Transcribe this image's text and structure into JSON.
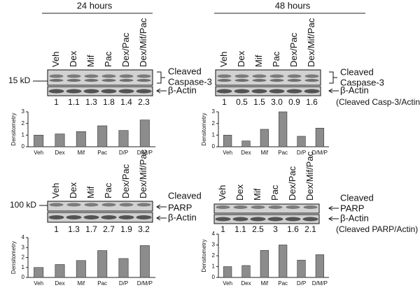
{
  "headers": [
    "24 hours",
    "48 hours"
  ],
  "panels": [
    {
      "lanes": [
        "Veh",
        "Dex",
        "Mif",
        "Pac",
        "Dex/Pac",
        "Dex/Mif/Pac"
      ],
      "marker": "15 kD",
      "protein": [
        "Cleaved",
        "Caspase-3"
      ],
      "loading": "β-Actin"
    },
    {
      "lanes": [
        "Veh",
        "Dex",
        "Mif",
        "Pac",
        "Dex/Pac",
        "Dex/Mif/Pac"
      ],
      "protein": [
        "Cleaved",
        "Caspase-3"
      ],
      "loading": "β-Actin"
    },
    {
      "lanes": [
        "Veh",
        "Dex",
        "Mif",
        "Pac",
        "Dex/Pac",
        "Dex/Mif/Pac"
      ],
      "marker": "100 kD",
      "protein": [
        "Cleaved",
        "PARP"
      ],
      "loading": "β-Actin"
    },
    {
      "lanes": [
        "Veh",
        "Dex",
        "Mif",
        "Pac",
        "Dex/Pac",
        "Dex/Mif/Pac"
      ],
      "protein": [
        "Cleaved",
        "PARP"
      ],
      "loading": "β-Actin"
    }
  ],
  "chart_data": [
    {
      "type": "bar",
      "ylabel": "Densitometry",
      "categories": [
        "Veh",
        "Dex",
        "Mif",
        "Pac",
        "D/P",
        "D/M/P"
      ],
      "values": [
        1,
        1.1,
        1.3,
        1.8,
        1.4,
        2.3
      ],
      "color": "#8c8c8c",
      "ylim": [
        0,
        3
      ],
      "yticks": [
        0,
        1,
        2,
        3
      ]
    },
    {
      "type": "bar",
      "ylabel": "Densitometry",
      "categories": [
        "Veh",
        "Dex",
        "Mif",
        "Pac",
        "D/P",
        "D/M/P"
      ],
      "values": [
        1,
        0.5,
        1.5,
        3.0,
        0.9,
        1.6
      ],
      "value_labels": [
        "1",
        "0.5",
        "1.5",
        "3.0",
        "0.9",
        "1.6"
      ],
      "annotation": "(Cleaved Casp-3/Actin)",
      "color": "#8c8c8c",
      "ylim": [
        0,
        3
      ],
      "yticks": [
        0,
        1,
        2,
        3
      ]
    },
    {
      "type": "bar",
      "ylabel": "Densitometry",
      "categories": [
        "Veh",
        "Dex",
        "Mif",
        "Pac",
        "D/P",
        "D/M/P"
      ],
      "values": [
        1,
        1.3,
        1.7,
        2.7,
        1.9,
        3.2
      ],
      "color": "#8c8c8c",
      "ylim": [
        0,
        4
      ],
      "yticks": [
        0,
        1,
        2,
        3,
        4
      ]
    },
    {
      "type": "bar",
      "ylabel": "Densitometry",
      "categories": [
        "Veh",
        "Dex",
        "Mif",
        "Pac",
        "D/P",
        "D/M/P"
      ],
      "values": [
        1,
        1.1,
        2.5,
        3,
        1.6,
        2.1
      ],
      "annotation": "(Cleaved PARP/Actin)",
      "color": "#8c8c8c",
      "ylim": [
        0,
        4
      ],
      "yticks": [
        0,
        1,
        2,
        3,
        4
      ]
    }
  ]
}
